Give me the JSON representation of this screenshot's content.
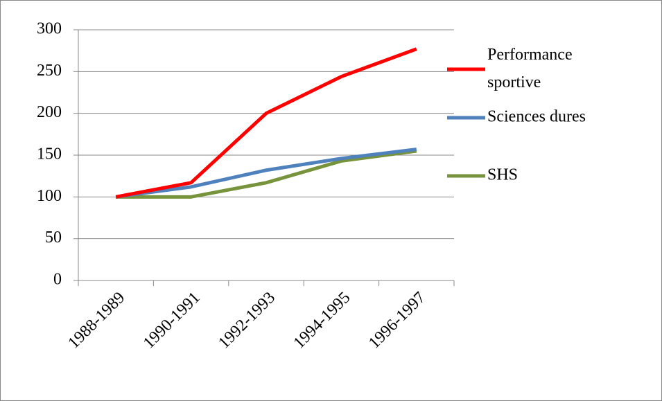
{
  "chart_data": {
    "type": "line",
    "categories": [
      "1988-1989",
      "1990-1991",
      "1992-1993",
      "1994-1995",
      "1996-1997"
    ],
    "series": [
      {
        "name": "Performance sportive",
        "color": "#ff0000",
        "values": [
          100,
          117,
          200,
          244,
          277
        ]
      },
      {
        "name": "Sciences dures",
        "color": "#4f81bd",
        "values": [
          100,
          112,
          132,
          146,
          157
        ]
      },
      {
        "name": "SHS",
        "color": "#77933c",
        "values": [
          100,
          100,
          117,
          143,
          155
        ]
      }
    ],
    "ylim": [
      0,
      300
    ],
    "yticks": [
      0,
      50,
      100,
      150,
      200,
      250,
      300
    ],
    "grid": true,
    "legend": "right"
  }
}
